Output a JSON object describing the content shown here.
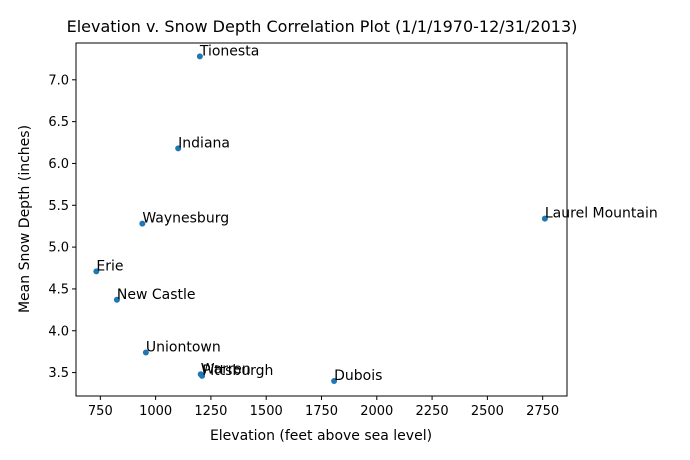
{
  "chart_data": {
    "type": "scatter",
    "title": "Elevation v. Snow Depth Correlation Plot (1/1/1970-12/31/2013)",
    "xlabel": "Elevation (feet above sea level)",
    "ylabel": "Mean Snow Depth (inches)",
    "xlim": [
      640,
      2860
    ],
    "ylim": [
      3.22,
      7.44
    ],
    "xticks": [
      750,
      1000,
      1250,
      1500,
      1750,
      2000,
      2250,
      2500,
      2750
    ],
    "yticks": [
      3.5,
      4.0,
      4.5,
      5.0,
      5.5,
      6.0,
      6.5,
      7.0
    ],
    "ytick_labels": [
      "3.5",
      "4.0",
      "4.5",
      "5.0",
      "5.5",
      "6.0",
      "6.5",
      "7.0"
    ],
    "grid": false,
    "point_color": "#1f77b4",
    "points": [
      {
        "label": "Tionesta",
        "x": 1200,
        "y": 7.28
      },
      {
        "label": "Indiana",
        "x": 1102,
        "y": 6.18
      },
      {
        "label": "Laurel Mountain",
        "x": 2760,
        "y": 5.34
      },
      {
        "label": "Waynesburg",
        "x": 940,
        "y": 5.28
      },
      {
        "label": "Erie",
        "x": 732,
        "y": 4.71
      },
      {
        "label": "New Castle",
        "x": 825,
        "y": 4.37
      },
      {
        "label": "Uniontown",
        "x": 956,
        "y": 3.74
      },
      {
        "label": "Warren",
        "x": 1204,
        "y": 3.48
      },
      {
        "label": "Pittsburgh",
        "x": 1210,
        "y": 3.46
      },
      {
        "label": "Dubois",
        "x": 1807,
        "y": 3.4
      }
    ]
  }
}
